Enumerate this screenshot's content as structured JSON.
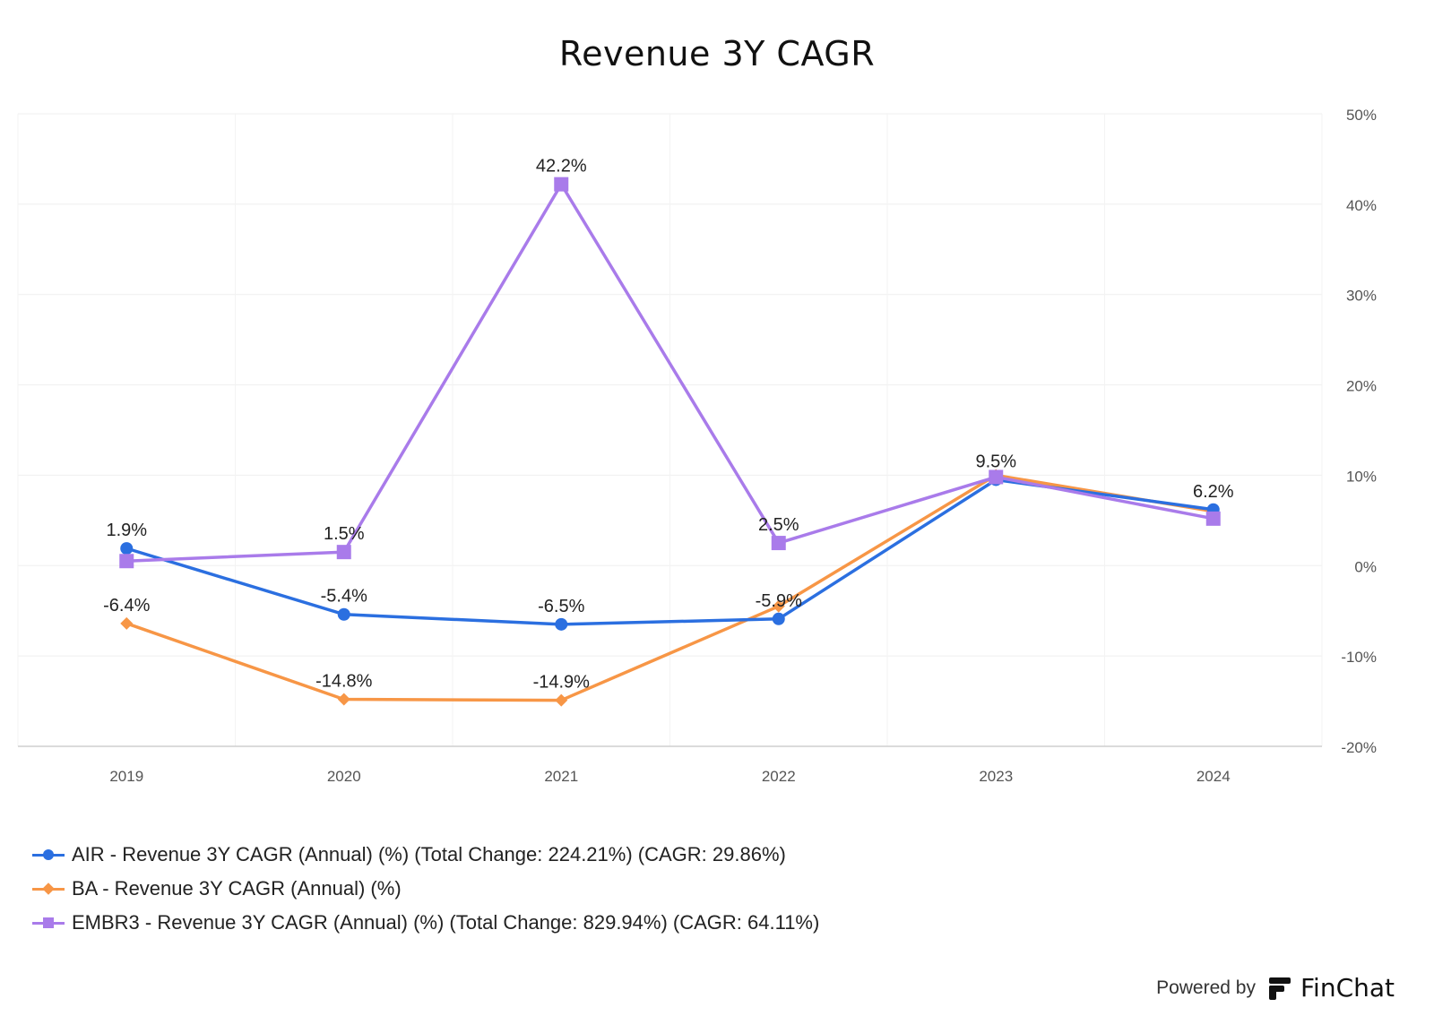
{
  "chart_data": {
    "type": "line",
    "title": "Revenue 3Y CAGR",
    "xlabel": "",
    "ylabel": "",
    "x": [
      "2019",
      "2020",
      "2021",
      "2022",
      "2023",
      "2024"
    ],
    "ylim": [
      -20,
      50
    ],
    "yticks": [
      "50%",
      "40%",
      "30%",
      "20%",
      "10%",
      "0%",
      "-10%",
      "-20%"
    ],
    "ytick_values": [
      50,
      40,
      30,
      20,
      10,
      0,
      -10,
      -20
    ],
    "y_axis_side": "right",
    "grid": true,
    "legend_position": "bottom-left",
    "series": [
      {
        "name": "AIR - Revenue 3Y CAGR (Annual) (%) (Total Change: 224.21%) (CAGR: 29.86%)",
        "color": "#2b6fe0",
        "marker": "circle",
        "values": [
          1.9,
          -5.4,
          -6.5,
          -5.9,
          9.5,
          6.2
        ],
        "labels": [
          "1.9%",
          "-5.4%",
          "-6.5%",
          "-5.9%",
          "9.5%",
          "6.2%"
        ]
      },
      {
        "name": "BA - Revenue 3Y CAGR (Annual) (%)",
        "color": "#f79646",
        "marker": "diamond",
        "values": [
          -6.4,
          -14.8,
          -14.9,
          -4.5,
          10.0,
          6.0
        ],
        "labels": [
          "-6.4%",
          "-14.8%",
          "-14.9%",
          "",
          "",
          ""
        ]
      },
      {
        "name": "EMBR3 - Revenue 3Y CAGR (Annual) (%) (Total Change: 829.94%) (CAGR: 64.11%)",
        "color": "#a97bea",
        "marker": "square",
        "values": [
          0.5,
          1.5,
          42.2,
          2.5,
          9.8,
          5.2
        ],
        "labels": [
          "",
          "1.5%",
          "42.2%",
          "2.5%",
          "",
          ""
        ]
      }
    ]
  },
  "footer": {
    "powered_by": "Powered by",
    "brand": "FinChat"
  }
}
